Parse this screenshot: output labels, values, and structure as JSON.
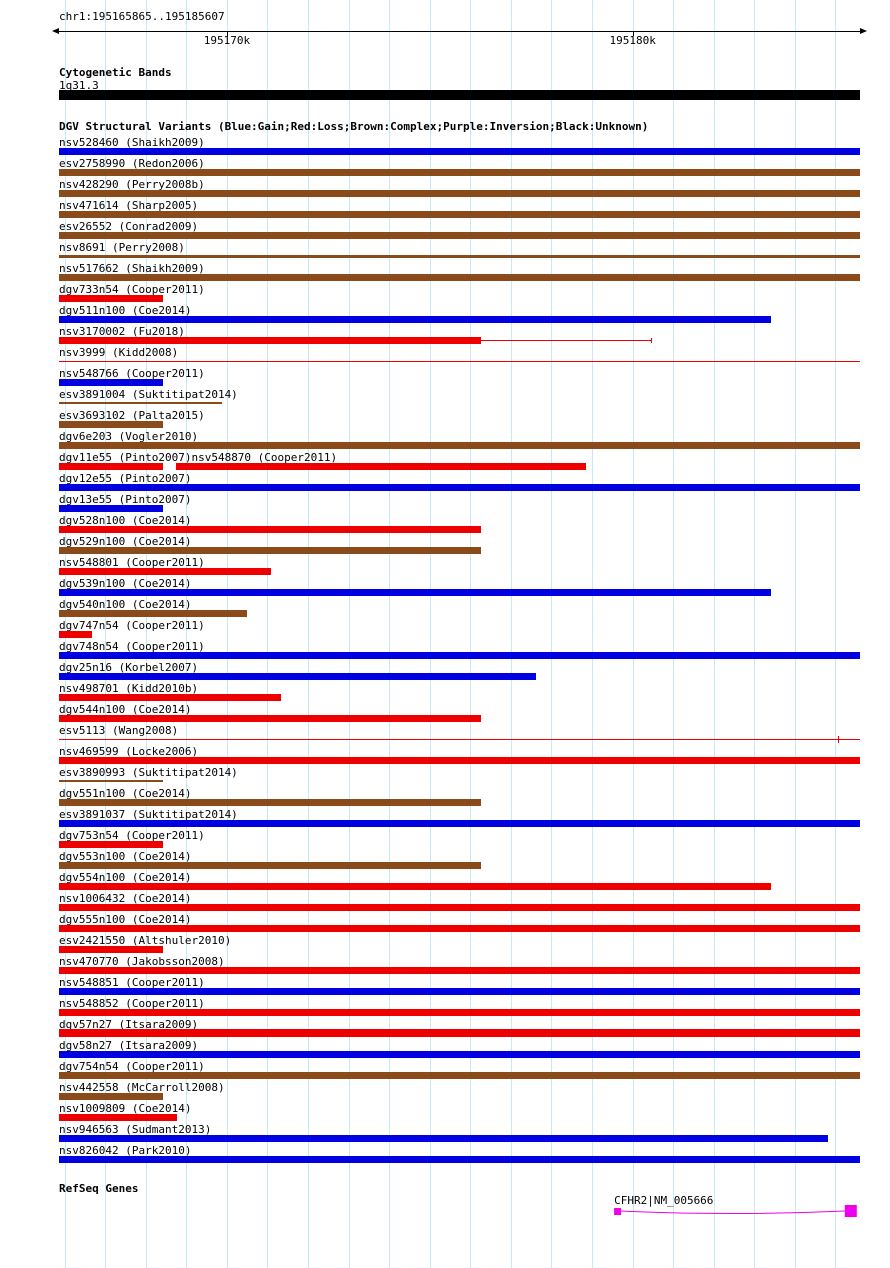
{
  "region": {
    "title": "chr1:195165865..195185607",
    "start": 195165865,
    "end": 195185607
  },
  "ruler": {
    "ticks": [
      {
        "label": "195170k",
        "pos": 195170000
      },
      {
        "label": "195180k",
        "pos": 195180000
      }
    ]
  },
  "cytoband": {
    "header": "Cytogenetic Bands",
    "band_label": "1q31.3",
    "color": "#000000",
    "s": 0,
    "e": 1
  },
  "dgv": {
    "header": "DGV Structural Variants (Blue:Gain;Red:Loss;Brown:Complex;Purple:Inversion;Black:Unknown)",
    "colors": {
      "blue": "#0000e0",
      "red": "#ee0000",
      "brown": "#8b4a1a"
    },
    "rows": [
      {
        "features": [
          {
            "label": "nsv528460 (Shaikh2009)",
            "color": "blue",
            "segments": [
              [
                0,
                1,
                7
              ]
            ]
          }
        ]
      },
      {
        "features": [
          {
            "label": "esv2758990 (Redon2006)",
            "color": "brown",
            "segments": [
              [
                0,
                1,
                7
              ]
            ]
          }
        ]
      },
      {
        "features": [
          {
            "label": "nsv428290 (Perry2008b)",
            "color": "brown",
            "segments": [
              [
                0,
                1,
                7
              ]
            ]
          }
        ]
      },
      {
        "features": [
          {
            "label": "nsv471614 (Sharp2005)",
            "color": "brown",
            "segments": [
              [
                0,
                1,
                7
              ]
            ]
          }
        ]
      },
      {
        "features": [
          {
            "label": "esv26552 (Conrad2009)",
            "color": "brown",
            "segments": [
              [
                0,
                1,
                7
              ]
            ]
          }
        ]
      },
      {
        "features": [
          {
            "label": "nsv8691 (Perry2008)",
            "color": "brown",
            "segments": [
              [
                0,
                1,
                3
              ]
            ]
          }
        ]
      },
      {
        "features": [
          {
            "label": "nsv517662 (Shaikh2009)",
            "color": "brown",
            "segments": [
              [
                0,
                1,
                7
              ]
            ]
          }
        ]
      },
      {
        "features": [
          {
            "label": "dgv733n54 (Cooper2011)",
            "color": "red",
            "segments": [
              [
                0,
                0.13,
                7
              ]
            ]
          }
        ]
      },
      {
        "features": [
          {
            "label": "dgv511n100 (Coe2014)",
            "color": "blue",
            "segments": [
              [
                0,
                0.889,
                7
              ]
            ]
          }
        ]
      },
      {
        "features": [
          {
            "label": "nsv3170002 (Fu2018)",
            "color": "red",
            "segments": [
              [
                0,
                0.527,
                7
              ],
              [
                0.527,
                0.739,
                1
              ]
            ],
            "ticks": [
              [
                0.739,
                5
              ]
            ]
          }
        ]
      },
      {
        "features": [
          {
            "label": "nsv3999 (Kidd2008)",
            "color": "red",
            "segments": [
              [
                0,
                1,
                1
              ]
            ]
          }
        ]
      },
      {
        "features": [
          {
            "label": "nsv548766 (Cooper2011)",
            "color": "blue",
            "segments": [
              [
                0,
                0.13,
                7
              ]
            ]
          }
        ]
      },
      {
        "features": [
          {
            "label": "esv3891004 (Suktitipat2014)",
            "color": "brown",
            "segments": [
              [
                0,
                0.203,
                2
              ]
            ]
          }
        ]
      },
      {
        "features": [
          {
            "label": "esv3693102 (Palta2015)",
            "color": "brown",
            "segments": [
              [
                0,
                0.13,
                7
              ]
            ]
          }
        ]
      },
      {
        "features": [
          {
            "label": "dgv6e203 (Vogler2010)",
            "color": "brown",
            "segments": [
              [
                0,
                1,
                7
              ]
            ]
          }
        ]
      },
      {
        "features": [
          {
            "label": "dgv11e55 (Pinto2007)",
            "color": "red",
            "segments": [
              [
                0,
                0.13,
                7
              ]
            ]
          },
          {
            "label": "nsv548870 (Cooper2011)",
            "color": "red",
            "segments": [
              [
                0.146,
                0.658,
                7
              ]
            ]
          }
        ]
      },
      {
        "features": [
          {
            "label": "dgv12e55 (Pinto2007)",
            "color": "blue",
            "segments": [
              [
                0,
                1,
                7
              ]
            ]
          }
        ]
      },
      {
        "features": [
          {
            "label": "dgv13e55 (Pinto2007)",
            "color": "blue",
            "segments": [
              [
                0,
                0.13,
                7
              ]
            ]
          }
        ]
      },
      {
        "features": [
          {
            "label": "dgv528n100 (Coe2014)",
            "color": "red",
            "segments": [
              [
                0,
                0.527,
                7
              ]
            ]
          }
        ]
      },
      {
        "features": [
          {
            "label": "dgv529n100 (Coe2014)",
            "color": "brown",
            "segments": [
              [
                0,
                0.527,
                7
              ]
            ]
          }
        ]
      },
      {
        "features": [
          {
            "label": "nsv548801 (Cooper2011)",
            "color": "red",
            "segments": [
              [
                0,
                0.265,
                7
              ]
            ]
          }
        ]
      },
      {
        "features": [
          {
            "label": "dgv539n100 (Coe2014)",
            "color": "blue",
            "segments": [
              [
                0,
                0.889,
                7
              ]
            ]
          }
        ]
      },
      {
        "features": [
          {
            "label": "dgv540n100 (Coe2014)",
            "color": "brown",
            "segments": [
              [
                0,
                0.235,
                7
              ]
            ]
          }
        ]
      },
      {
        "features": [
          {
            "label": "dgv747n54 (Cooper2011)",
            "color": "red",
            "segments": [
              [
                0,
                0.041,
                7
              ]
            ]
          }
        ]
      },
      {
        "features": [
          {
            "label": "dgv748n54 (Cooper2011)",
            "color": "blue",
            "segments": [
              [
                0,
                1,
                7
              ]
            ]
          }
        ]
      },
      {
        "features": [
          {
            "label": "dgv25n16 (Korbel2007)",
            "color": "blue",
            "segments": [
              [
                0,
                0.595,
                7
              ]
            ]
          }
        ]
      },
      {
        "features": [
          {
            "label": "nsv498701 (Kidd2010b)",
            "color": "red",
            "segments": [
              [
                0,
                0.277,
                7
              ]
            ]
          }
        ]
      },
      {
        "features": [
          {
            "label": "dgv544n100 (Coe2014)",
            "color": "red",
            "segments": [
              [
                0,
                0.527,
                7
              ]
            ]
          }
        ]
      },
      {
        "features": [
          {
            "label": "esv5113 (Wang2008)",
            "color": "red",
            "segments": [
              [
                0,
                1,
                1
              ]
            ],
            "ticks": [
              [
                0.972,
                7
              ]
            ]
          }
        ]
      },
      {
        "features": [
          {
            "label": "nsv469599 (Locke2006)",
            "color": "red",
            "segments": [
              [
                0,
                1,
                7
              ]
            ]
          }
        ]
      },
      {
        "features": [
          {
            "label": "esv3890993 (Suktitipat2014)",
            "color": "brown",
            "segments": [
              [
                0,
                0.13,
                2
              ]
            ]
          }
        ]
      },
      {
        "features": [
          {
            "label": "dgv551n100 (Coe2014)",
            "color": "brown",
            "segments": [
              [
                0,
                0.527,
                7
              ]
            ]
          }
        ]
      },
      {
        "features": [
          {
            "label": "esv3891037 (Suktitipat2014)",
            "color": "blue",
            "segments": [
              [
                0,
                1,
                7
              ]
            ]
          }
        ]
      },
      {
        "features": [
          {
            "label": "dgv753n54 (Cooper2011)",
            "color": "red",
            "segments": [
              [
                0,
                0.13,
                7
              ]
            ]
          }
        ]
      },
      {
        "features": [
          {
            "label": "dgv553n100 (Coe2014)",
            "color": "brown",
            "segments": [
              [
                0,
                0.527,
                7
              ]
            ]
          }
        ]
      },
      {
        "features": [
          {
            "label": "dgv554n100 (Coe2014)",
            "color": "red",
            "segments": [
              [
                0,
                0.889,
                7
              ]
            ]
          }
        ]
      },
      {
        "features": [
          {
            "label": "nsv1006432 (Coe2014)",
            "color": "red",
            "segments": [
              [
                0,
                1,
                7
              ]
            ]
          }
        ]
      },
      {
        "features": [
          {
            "label": "dgv555n100 (Coe2014)",
            "color": "red",
            "segments": [
              [
                0,
                1,
                7
              ]
            ]
          }
        ]
      },
      {
        "features": [
          {
            "label": "esv2421550 (Altshuler2010)",
            "color": "red",
            "segments": [
              [
                0,
                0.13,
                7
              ]
            ]
          }
        ]
      },
      {
        "features": [
          {
            "label": "nsv470770 (Jakobsson2008)",
            "color": "red",
            "segments": [
              [
                0,
                1,
                7
              ]
            ]
          }
        ]
      },
      {
        "features": [
          {
            "label": "nsv548851 (Cooper2011)",
            "color": "blue",
            "segments": [
              [
                0,
                1,
                7
              ]
            ]
          }
        ]
      },
      {
        "features": [
          {
            "label": "nsv548852 (Cooper2011)",
            "color": "red",
            "segments": [
              [
                0,
                1,
                7
              ]
            ]
          }
        ]
      },
      {
        "features": [
          {
            "label": "dgv57n27 (Itsara2009)",
            "color": "red",
            "segments": [
              [
                0,
                1,
                8
              ]
            ]
          }
        ]
      },
      {
        "features": [
          {
            "label": "dgv58n27 (Itsara2009)",
            "color": "blue",
            "segments": [
              [
                0,
                1,
                7
              ]
            ]
          }
        ]
      },
      {
        "features": [
          {
            "label": "dgv754n54 (Cooper2011)",
            "color": "brown",
            "segments": [
              [
                0,
                1,
                7
              ]
            ]
          }
        ]
      },
      {
        "features": [
          {
            "label": "nsv442558 (McCarroll2008)",
            "color": "brown",
            "segments": [
              [
                0,
                0.13,
                7
              ]
            ]
          }
        ]
      },
      {
        "features": [
          {
            "label": "nsv1009809 (Coe2014)",
            "color": "red",
            "segments": [
              [
                0,
                0.147,
                7
              ]
            ]
          }
        ]
      },
      {
        "features": [
          {
            "label": "nsv946563 (Sudmant2013)",
            "color": "blue",
            "segments": [
              [
                0,
                0.96,
                7
              ]
            ]
          }
        ]
      },
      {
        "features": [
          {
            "label": "nsv826042 (Park2010)",
            "color": "blue",
            "segments": [
              [
                0,
                1,
                7
              ]
            ]
          }
        ]
      }
    ]
  },
  "refseq": {
    "header": "RefSeq Genes",
    "genes": [
      {
        "label": "CFHR2|NM_005666",
        "color": "#ee00ee",
        "s": 0.693,
        "e": 0.996
      }
    ]
  }
}
